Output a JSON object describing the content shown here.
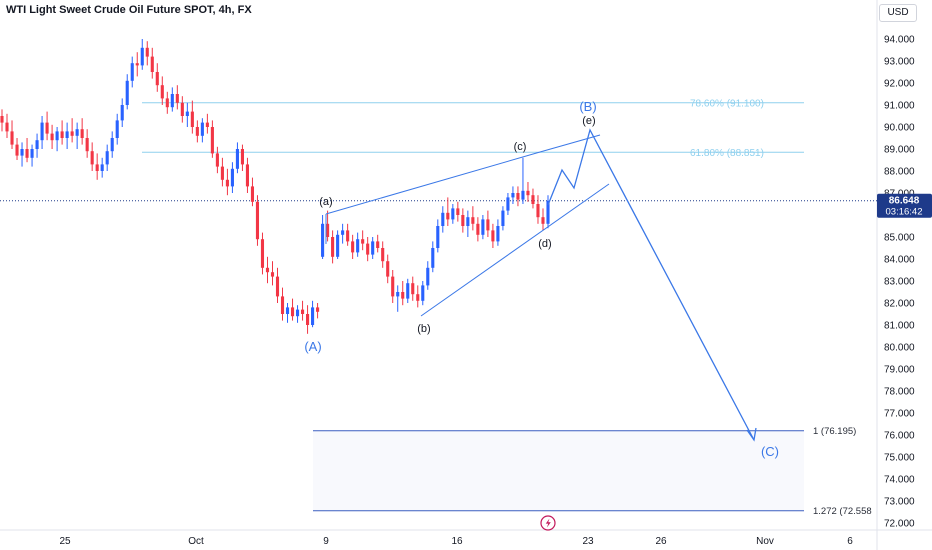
{
  "header": {
    "title": "WTI Light Sweet Crude Oil Future SPOT, 4h, FX",
    "currency": "USD"
  },
  "colors": {
    "up": "#2962ff",
    "down": "#f23645",
    "wave_line": "#3b78e7",
    "fib_line": "#8fd0ee",
    "fib_text": "#8fd0ee",
    "price_label_bg": "#1e3a8a",
    "axis_text": "#131722"
  },
  "chart_data": {
    "type": "candlestick",
    "title": "WTI Light Sweet Crude Oil Future SPOT, 4h, FX",
    "x_ticks": [
      "25",
      "Oct",
      "9",
      "16",
      "23",
      "26",
      "Nov",
      "6"
    ],
    "y_ticks": [
      "94.000",
      "93.000",
      "92.000",
      "91.000",
      "90.000",
      "89.000",
      "88.000",
      "87.000",
      "85.000",
      "84.000",
      "83.000",
      "82.000",
      "81.000",
      "80.000",
      "79.000",
      "78.000",
      "77.000",
      "76.000",
      "75.000",
      "74.000",
      "73.000",
      "72.000"
    ],
    "ylim": [
      71.8,
      95.2
    ],
    "current_price": {
      "value": "86.648",
      "countdown": "03:16:42"
    },
    "fib_levels": [
      {
        "label": "78.60% (91.100)",
        "value": 91.1
      },
      {
        "label": "61.80% (88.851)",
        "value": 88.851
      }
    ],
    "target_levels": [
      {
        "label": "1 (76.195)",
        "value": 76.195
      },
      {
        "label": "1.272 (72.558",
        "value": 72.558
      }
    ],
    "wave_labels": [
      {
        "text": "(A)",
        "price": 80.0
      },
      {
        "text": "(a)",
        "price": 86.7
      },
      {
        "text": "(b)",
        "price": 80.8
      },
      {
        "text": "(c)",
        "price": 89.2
      },
      {
        "text": "(d)",
        "price": 84.6
      },
      {
        "text": "(B)",
        "price": 91.0
      },
      {
        "text": "(e)",
        "price": 90.3
      },
      {
        "text": "(C)",
        "price": 75.1
      }
    ],
    "candles": [
      [
        90.5,
        90.8,
        89.8,
        90.2
      ],
      [
        90.2,
        90.6,
        89.5,
        89.8
      ],
      [
        89.8,
        90.3,
        89.0,
        89.2
      ],
      [
        89.2,
        89.5,
        88.5,
        88.7
      ],
      [
        88.7,
        89.3,
        88.2,
        89.0
      ],
      [
        89.0,
        89.5,
        88.4,
        88.6
      ],
      [
        88.6,
        89.2,
        88.2,
        89.0
      ],
      [
        89.0,
        89.7,
        88.6,
        89.4
      ],
      [
        89.4,
        90.5,
        89.0,
        90.2
      ],
      [
        90.2,
        90.7,
        89.4,
        89.7
      ],
      [
        89.7,
        90.1,
        89.0,
        89.4
      ],
      [
        89.4,
        90.0,
        88.9,
        89.8
      ],
      [
        89.8,
        90.3,
        89.2,
        89.5
      ],
      [
        89.5,
        90.2,
        89.0,
        89.8
      ],
      [
        89.8,
        90.4,
        89.3,
        89.6
      ],
      [
        89.6,
        90.2,
        89.0,
        89.9
      ],
      [
        89.9,
        90.4,
        89.2,
        89.5
      ],
      [
        89.5,
        89.9,
        88.6,
        88.9
      ],
      [
        88.9,
        89.3,
        88.0,
        88.3
      ],
      [
        88.3,
        88.8,
        87.6,
        88.0
      ],
      [
        88.0,
        88.6,
        87.7,
        88.3
      ],
      [
        88.3,
        89.2,
        88.0,
        88.9
      ],
      [
        88.9,
        89.8,
        88.6,
        89.5
      ],
      [
        89.5,
        90.6,
        89.2,
        90.3
      ],
      [
        90.3,
        91.3,
        90.0,
        91.0
      ],
      [
        91.0,
        92.4,
        90.8,
        92.1
      ],
      [
        92.1,
        93.2,
        91.8,
        92.9
      ],
      [
        92.9,
        93.4,
        92.3,
        92.8
      ],
      [
        92.8,
        94.0,
        92.6,
        93.6
      ],
      [
        93.6,
        93.9,
        92.8,
        93.2
      ],
      [
        93.2,
        93.6,
        92.2,
        92.5
      ],
      [
        92.5,
        92.9,
        91.6,
        91.9
      ],
      [
        91.9,
        92.3,
        91.0,
        91.3
      ],
      [
        91.3,
        91.6,
        90.6,
        90.9
      ],
      [
        90.9,
        91.8,
        90.7,
        91.5
      ],
      [
        91.5,
        91.9,
        90.8,
        91.1
      ],
      [
        91.1,
        91.4,
        90.2,
        90.5
      ],
      [
        90.5,
        91.1,
        90.0,
        90.7
      ],
      [
        90.7,
        91.2,
        89.7,
        90.0
      ],
      [
        90.0,
        90.3,
        89.3,
        89.6
      ],
      [
        89.6,
        90.4,
        89.3,
        90.2
      ],
      [
        90.2,
        90.6,
        89.7,
        90.0
      ],
      [
        90.0,
        90.3,
        88.6,
        88.8
      ],
      [
        88.8,
        89.1,
        87.9,
        88.2
      ],
      [
        88.2,
        88.6,
        87.3,
        87.6
      ],
      [
        87.6,
        88.1,
        86.9,
        87.3
      ],
      [
        87.3,
        88.4,
        87.0,
        88.1
      ],
      [
        88.1,
        89.3,
        87.9,
        89.0
      ],
      [
        89.0,
        89.2,
        88.0,
        88.3
      ],
      [
        88.3,
        88.6,
        87.0,
        87.3
      ],
      [
        87.3,
        87.7,
        86.4,
        86.6
      ],
      [
        86.6,
        86.9,
        84.6,
        84.9
      ],
      [
        84.9,
        85.2,
        83.3,
        83.6
      ],
      [
        83.6,
        84.1,
        82.9,
        83.4
      ],
      [
        83.4,
        83.9,
        82.8,
        83.2
      ],
      [
        83.2,
        83.6,
        82.0,
        82.3
      ],
      [
        82.3,
        82.7,
        81.2,
        81.5
      ],
      [
        81.5,
        82.0,
        81.1,
        81.8
      ],
      [
        81.8,
        82.2,
        81.2,
        81.4
      ],
      [
        81.4,
        81.9,
        81.1,
        81.7
      ],
      [
        81.7,
        82.1,
        81.2,
        81.5
      ],
      [
        81.5,
        81.9,
        80.6,
        81.0
      ],
      [
        81.0,
        82.1,
        80.9,
        81.8
      ],
      [
        81.8,
        82.0,
        81.3,
        81.6
      ],
      [
        84.1,
        86.0,
        84.0,
        85.6
      ],
      [
        85.6,
        86.2,
        84.8,
        85.0
      ],
      [
        85.0,
        85.3,
        83.8,
        84.1
      ],
      [
        84.1,
        85.3,
        84.0,
        85.1
      ],
      [
        85.1,
        85.6,
        84.7,
        85.3
      ],
      [
        85.3,
        85.6,
        84.6,
        84.8
      ],
      [
        84.8,
        85.1,
        84.0,
        84.3
      ],
      [
        84.3,
        85.2,
        84.1,
        84.9
      ],
      [
        84.9,
        85.3,
        84.4,
        84.7
      ],
      [
        84.7,
        85.0,
        83.9,
        84.2
      ],
      [
        84.2,
        85.0,
        84.0,
        84.8
      ],
      [
        84.8,
        85.1,
        84.3,
        84.5
      ],
      [
        84.5,
        84.8,
        83.6,
        83.9
      ],
      [
        83.9,
        84.2,
        82.9,
        83.2
      ],
      [
        83.2,
        83.5,
        82.0,
        82.3
      ],
      [
        82.3,
        82.8,
        81.6,
        82.5
      ],
      [
        82.5,
        83.0,
        81.9,
        82.2
      ],
      [
        82.2,
        83.1,
        82.0,
        82.9
      ],
      [
        82.9,
        83.2,
        82.1,
        82.4
      ],
      [
        82.4,
        82.8,
        81.8,
        82.1
      ],
      [
        82.1,
        83.0,
        81.9,
        82.8
      ],
      [
        82.8,
        83.9,
        82.6,
        83.6
      ],
      [
        83.6,
        84.8,
        83.4,
        84.5
      ],
      [
        84.5,
        85.8,
        84.3,
        85.5
      ],
      [
        85.5,
        86.4,
        85.2,
        86.1
      ],
      [
        86.1,
        86.8,
        85.5,
        85.8
      ],
      [
        85.8,
        86.5,
        85.6,
        86.3
      ],
      [
        86.3,
        86.6,
        85.7,
        86.0
      ],
      [
        86.0,
        86.3,
        85.2,
        85.5
      ],
      [
        85.5,
        86.2,
        85.0,
        85.9
      ],
      [
        85.9,
        86.4,
        85.3,
        85.6
      ],
      [
        85.6,
        85.9,
        84.8,
        85.1
      ],
      [
        85.1,
        86.0,
        84.9,
        85.8
      ],
      [
        85.8,
        86.2,
        85.0,
        85.3
      ],
      [
        85.3,
        85.6,
        84.5,
        84.8
      ],
      [
        84.8,
        85.8,
        84.6,
        85.5
      ],
      [
        85.5,
        86.4,
        85.3,
        86.2
      ],
      [
        86.2,
        87.0,
        86.0,
        86.8
      ],
      [
        86.8,
        87.3,
        86.5,
        87.0
      ],
      [
        87.0,
        87.3,
        86.4,
        86.7
      ],
      [
        86.7,
        88.6,
        86.5,
        87.1
      ],
      [
        87.1,
        87.5,
        86.6,
        86.9
      ],
      [
        86.9,
        87.2,
        86.3,
        86.5
      ],
      [
        86.5,
        86.9,
        85.6,
        85.9
      ],
      [
        85.9,
        86.3,
        85.3,
        85.6
      ],
      [
        85.6,
        86.9,
        85.4,
        86.648
      ]
    ]
  }
}
